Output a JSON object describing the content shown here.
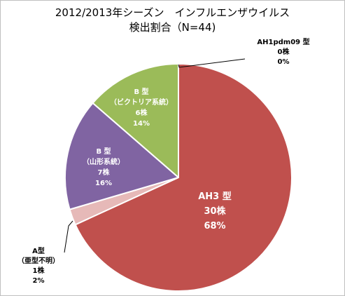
{
  "chart_data": {
    "type": "pie",
    "title": "2012/2013年シーズン　インフルエンザウイルス",
    "subtitle": "検出割合（N=44)",
    "slices": [
      {
        "name": "AH1pdm09 型",
        "count_label": "0株",
        "percent_label": "0%",
        "value": 0,
        "color": "#4f81bd"
      },
      {
        "name": "AH3 型",
        "count_label": "30株",
        "percent_label": "68%",
        "value": 30,
        "color": "#c0504d"
      },
      {
        "name": "A型",
        "subtype": "（亜型不明）",
        "count_label": "1株",
        "percent_label": "2%",
        "value": 1,
        "color": "#e6b9b8"
      },
      {
        "name": "B 型",
        "subtype": "（山形系統）",
        "count_label": "7株",
        "percent_label": "16%",
        "value": 7,
        "color": "#8064a2"
      },
      {
        "name": "B 型",
        "subtype": "（ビクトリア系統）",
        "count_label": "6株",
        "percent_label": "14%",
        "value": 6,
        "color": "#9bbb59"
      }
    ]
  }
}
